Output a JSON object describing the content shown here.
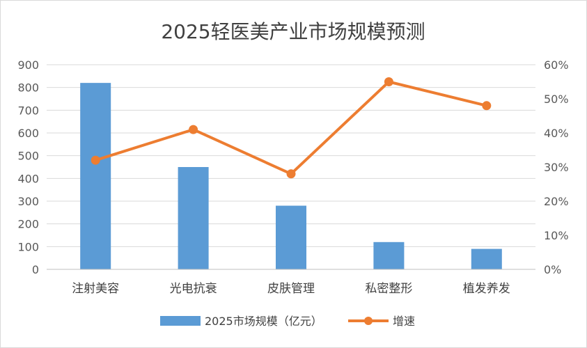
{
  "chart_data": {
    "type": "bar",
    "title": "2025轻医美产业市场规模预测",
    "categories": [
      "注射美容",
      "光电抗衰",
      "皮肤管理",
      "私密整形",
      "植发养发"
    ],
    "series": [
      {
        "name": "2025市场规模（亿元）",
        "type": "bar",
        "axis": "left",
        "values": [
          820,
          450,
          280,
          120,
          90
        ],
        "color": "#5B9BD5"
      },
      {
        "name": "增速",
        "type": "line",
        "axis": "right",
        "values": [
          32,
          41,
          28,
          55,
          48
        ],
        "color": "#ED7D31"
      }
    ],
    "y_left": {
      "min": 0,
      "max": 900,
      "step": 100,
      "ticks": [
        "0",
        "100",
        "200",
        "300",
        "400",
        "500",
        "600",
        "700",
        "800",
        "900"
      ]
    },
    "y_right": {
      "min": 0,
      "max": 60,
      "step": 10,
      "ticks": [
        "0%",
        "10%",
        "20%",
        "30%",
        "40%",
        "50%",
        "60%"
      ]
    },
    "grid": true,
    "legend": "bottom"
  }
}
